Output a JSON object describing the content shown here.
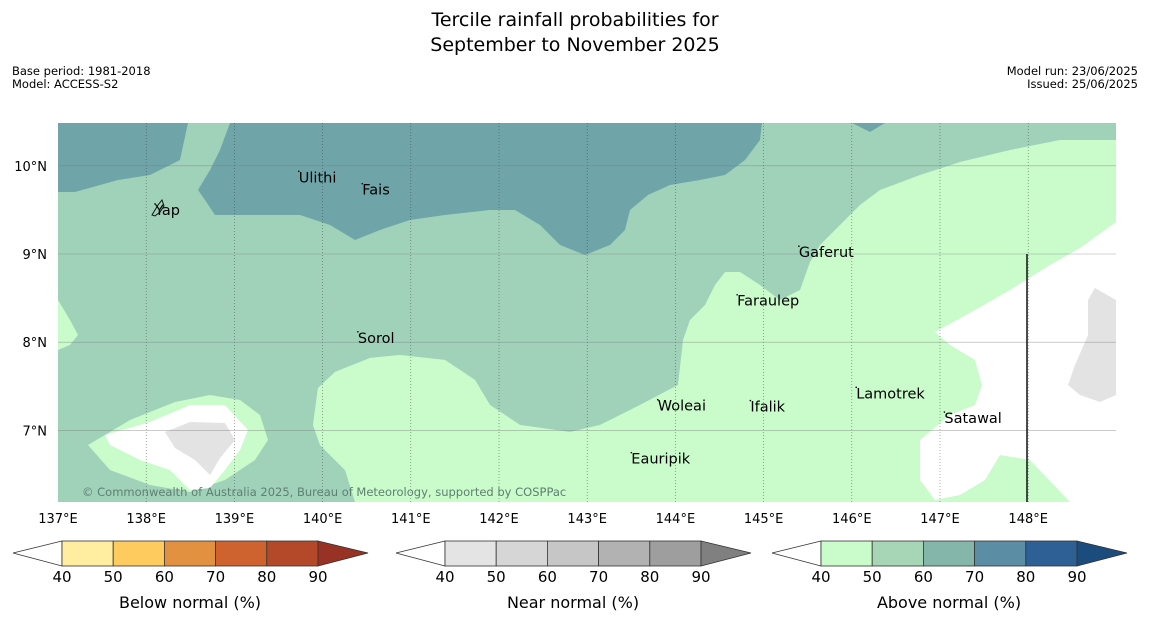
{
  "title": {
    "line1": "Tercile rainfall probabilities for",
    "line2": "September to November 2025"
  },
  "meta_left": {
    "base_period": "Base period: 1981-2018",
    "model": "Model: ACCESS-S2"
  },
  "meta_right": {
    "model_run": "Model run: 23/06/2025",
    "issued": "Issued: 25/06/2025"
  },
  "map": {
    "copyright": "© Commonwealth of Australia 2025, Bureau of Meteorology, supported by COSPPac",
    "lon_labels": [
      "137°E",
      "138°E",
      "139°E",
      "140°E",
      "141°E",
      "142°E",
      "143°E",
      "144°E",
      "145°E",
      "146°E",
      "147°E",
      "148°E"
    ],
    "lat_labels": [
      "10°N",
      "9°N",
      "8°N",
      "7°N"
    ],
    "places": [
      {
        "name": "Yap",
        "lon": 138.1,
        "lat": 9.5
      },
      {
        "name": "Ulithi",
        "lon": 139.73,
        "lat": 9.87
      },
      {
        "name": "Fais",
        "lon": 140.45,
        "lat": 9.73
      },
      {
        "name": "Gaferut",
        "lon": 145.4,
        "lat": 9.02
      },
      {
        "name": "Faraulep",
        "lon": 144.7,
        "lat": 8.47
      },
      {
        "name": "Sorol",
        "lon": 140.4,
        "lat": 8.05
      },
      {
        "name": "Woleai",
        "lon": 143.8,
        "lat": 7.28
      },
      {
        "name": "Ifalik",
        "lon": 144.85,
        "lat": 7.27
      },
      {
        "name": "Lamotrek",
        "lon": 146.05,
        "lat": 7.42
      },
      {
        "name": "Satawal",
        "lon": 147.05,
        "lat": 7.14
      },
      {
        "name": "Eauripik",
        "lon": 143.5,
        "lat": 6.68
      }
    ],
    "colors": {
      "ocean_40_50": "#c9fbcb",
      "above_50_60": "#a0d2ba",
      "above_60_70": "#6fa5a9",
      "below_50_60": "#ffffff",
      "near_50_60": "#e3e3e3"
    }
  },
  "colorbars": [
    {
      "label": "Below normal (%)",
      "ticks": [
        "40",
        "50",
        "60",
        "70",
        "80",
        "90"
      ],
      "colors": [
        "#ffffff",
        "#ffeda0",
        "#fecb5f",
        "#e19140",
        "#cf6330",
        "#b4492a",
        "#973224"
      ]
    },
    {
      "label": "Near normal (%)",
      "ticks": [
        "40",
        "50",
        "60",
        "70",
        "80",
        "90"
      ],
      "colors": [
        "#ffffff",
        "#e4e4e4",
        "#d6d6d6",
        "#c6c6c6",
        "#b2b2b2",
        "#9e9e9e",
        "#808080"
      ]
    },
    {
      "label": "Above normal (%)",
      "ticks": [
        "40",
        "50",
        "60",
        "70",
        "80",
        "90"
      ],
      "colors": [
        "#ffffff",
        "#c9fbcb",
        "#a7d6b6",
        "#84b7aa",
        "#5b8ea4",
        "#2e6096",
        "#1c4b7e"
      ]
    }
  ]
}
